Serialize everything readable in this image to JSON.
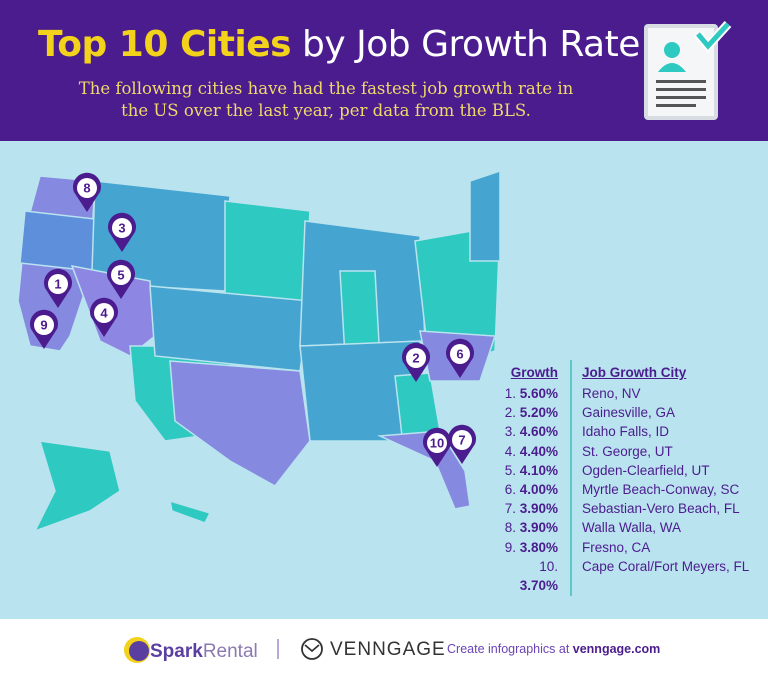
{
  "header": {
    "title_highlight": "Top 10 Cities",
    "title_rest": " by Job Growth Rate",
    "subtitle": "The following cities have had the fastest job growth rate in the US over the last year, per data from the BLS.",
    "icon": "resume-check-icon"
  },
  "colors": {
    "header_bg": "#4b1c8e",
    "title_accent": "#f2d21b",
    "map_bg": "#b9e3ef",
    "teal": "#2ec9c0",
    "blue": "#45a5d0",
    "purple": "#8589e0"
  },
  "legend": {
    "growth_header": "Growth",
    "city_header": "Job Growth City",
    "rows": [
      {
        "rank": "1.",
        "growth": "5.60%",
        "city": "Reno, NV"
      },
      {
        "rank": "2.",
        "growth": "5.20%",
        "city": "Gainesville, GA"
      },
      {
        "rank": "3.",
        "growth": "4.60%",
        "city": "Idaho Falls, ID"
      },
      {
        "rank": "4.",
        "growth": "4.40%",
        "city": "St. George, UT"
      },
      {
        "rank": "5.",
        "growth": "4.10%",
        "city": "Ogden-Clearfield, UT"
      },
      {
        "rank": "6.",
        "growth": "4.00%",
        "city": "Myrtle Beach-Conway, SC"
      },
      {
        "rank": "7.",
        "growth": "3.90%",
        "city": "Sebastian-Vero Beach, FL"
      },
      {
        "rank": "8.",
        "growth": "3.90%",
        "city": "Walla Walla, WA"
      },
      {
        "rank": "9.",
        "growth": "3.80%",
        "city": "Fresno, CA"
      },
      {
        "rank": "10.",
        "growth": "3.70%",
        "city": "Cape Coral/Fort Meyers, FL"
      }
    ]
  },
  "pins": [
    "8",
    "3",
    "5",
    "1",
    "4",
    "9",
    "2",
    "6",
    "10",
    "7"
  ],
  "footer": {
    "spark_a": "Spark",
    "spark_b": "Rental",
    "venngage": "VENNGAGE",
    "cta_text": "Create infographics at ",
    "cta_link": "venngage.com"
  }
}
